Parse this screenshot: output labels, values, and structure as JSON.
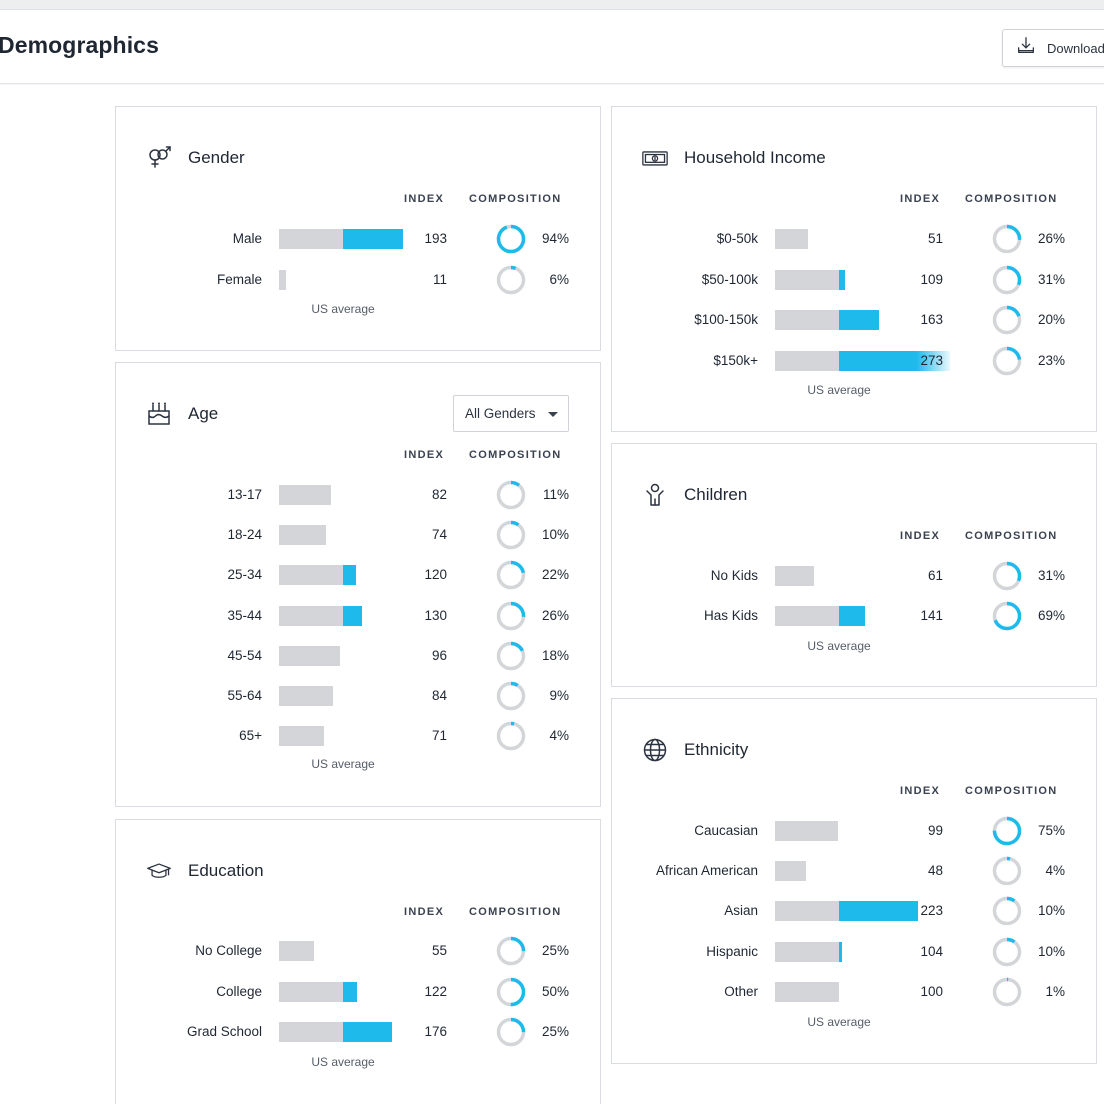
{
  "header": {
    "title": "Demographics",
    "download_label": "Download"
  },
  "columns": {
    "index": "INDEX",
    "composition": "COMPOSITION"
  },
  "us_average_label": "US average",
  "colors": {
    "accent": "#1fbaec",
    "bar_base": "#d3d5d8",
    "ring_track": "#d3d5d8"
  },
  "cards": {
    "gender": {
      "title": "Gender",
      "icon": "gender-icon",
      "rows": [
        {
          "label": "Male",
          "index": 193,
          "composition": "94%",
          "comp_value": 94
        },
        {
          "label": "Female",
          "index": 11,
          "composition": "6%",
          "comp_value": 6
        }
      ]
    },
    "income": {
      "title": "Household Income",
      "icon": "money-icon",
      "rows": [
        {
          "label": "$0-50k",
          "index": 51,
          "composition": "26%",
          "comp_value": 26
        },
        {
          "label": "$50-100k",
          "index": 109,
          "composition": "31%",
          "comp_value": 31
        },
        {
          "label": "$100-150k",
          "index": 163,
          "composition": "20%",
          "comp_value": 20
        },
        {
          "label": "$150k+",
          "index": 273,
          "composition": "23%",
          "comp_value": 23
        }
      ]
    },
    "age": {
      "title": "Age",
      "icon": "cake-icon",
      "filter": {
        "selected": "All Genders"
      },
      "rows": [
        {
          "label": "13-17",
          "index": 82,
          "composition": "11%",
          "comp_value": 11
        },
        {
          "label": "18-24",
          "index": 74,
          "composition": "10%",
          "comp_value": 10
        },
        {
          "label": "25-34",
          "index": 120,
          "composition": "22%",
          "comp_value": 22
        },
        {
          "label": "35-44",
          "index": 130,
          "composition": "26%",
          "comp_value": 26
        },
        {
          "label": "45-54",
          "index": 96,
          "composition": "18%",
          "comp_value": 18
        },
        {
          "label": "55-64",
          "index": 84,
          "composition": "9%",
          "comp_value": 9
        },
        {
          "label": "65+",
          "index": 71,
          "composition": "4%",
          "comp_value": 4
        }
      ]
    },
    "children": {
      "title": "Children",
      "icon": "child-icon",
      "rows": [
        {
          "label": "No Kids",
          "index": 61,
          "composition": "31%",
          "comp_value": 31
        },
        {
          "label": "Has Kids",
          "index": 141,
          "composition": "69%",
          "comp_value": 69
        }
      ]
    },
    "education": {
      "title": "Education",
      "icon": "graduation-cap-icon",
      "rows": [
        {
          "label": "No College",
          "index": 55,
          "composition": "25%",
          "comp_value": 25
        },
        {
          "label": "College",
          "index": 122,
          "composition": "50%",
          "comp_value": 50
        },
        {
          "label": "Grad School",
          "index": 176,
          "composition": "25%",
          "comp_value": 25
        }
      ]
    },
    "ethnicity": {
      "title": "Ethnicity",
      "icon": "globe-icon",
      "rows": [
        {
          "label": "Caucasian",
          "index": 99,
          "composition": "75%",
          "comp_value": 75
        },
        {
          "label": "African American",
          "index": 48,
          "composition": "4%",
          "comp_value": 4
        },
        {
          "label": "Asian",
          "index": 223,
          "composition": "10%",
          "comp_value": 10
        },
        {
          "label": "Hispanic",
          "index": 104,
          "composition": "10%",
          "comp_value": 10
        },
        {
          "label": "Other",
          "index": 100,
          "composition": "1%",
          "comp_value": 1
        }
      ]
    }
  }
}
